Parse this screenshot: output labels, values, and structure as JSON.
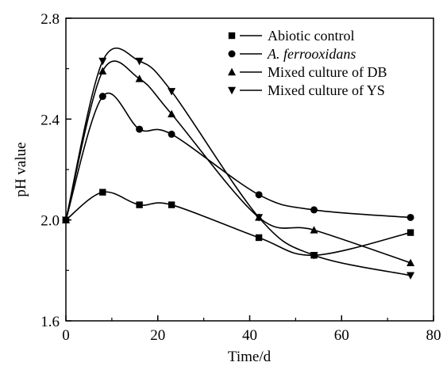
{
  "chart_data": {
    "type": "line",
    "xlabel": "Time/d",
    "ylabel": "pH value",
    "xlim": [
      0,
      80
    ],
    "ylim": [
      1.6,
      2.8
    ],
    "xticks": [
      0,
      20,
      40,
      60,
      80
    ],
    "yticks": [
      1.6,
      2.0,
      2.4,
      2.8
    ],
    "x_tick_labels": [
      "0",
      "20",
      "40",
      "60",
      "80"
    ],
    "y_tick_labels": [
      "1.6",
      "2.0",
      "2.4",
      "2.8"
    ],
    "grid": false,
    "legend_position": "top-right",
    "series": [
      {
        "name": "Abiotic control",
        "marker": "square",
        "italic": false,
        "x": [
          0,
          8,
          16,
          23,
          42,
          54,
          75
        ],
        "y": [
          2.0,
          2.11,
          2.06,
          2.06,
          1.93,
          1.86,
          1.95
        ]
      },
      {
        "name": "A. ferrooxidans",
        "marker": "circle",
        "italic": true,
        "x": [
          0,
          8,
          16,
          23,
          42,
          54,
          75
        ],
        "y": [
          2.0,
          2.49,
          2.36,
          2.34,
          2.1,
          2.04,
          2.01
        ]
      },
      {
        "name": "Mixed culture of DB",
        "marker": "triangle-up",
        "italic": false,
        "x": [
          0,
          8,
          16,
          23,
          42,
          54,
          75
        ],
        "y": [
          2.0,
          2.59,
          2.56,
          2.42,
          2.01,
          1.96,
          1.83
        ]
      },
      {
        "name": "Mixed culture of YS",
        "marker": "triangle-down",
        "italic": false,
        "x": [
          0,
          8,
          16,
          23,
          42,
          54,
          75
        ],
        "y": [
          2.0,
          2.63,
          2.63,
          2.51,
          2.01,
          1.86,
          1.78
        ]
      }
    ]
  }
}
